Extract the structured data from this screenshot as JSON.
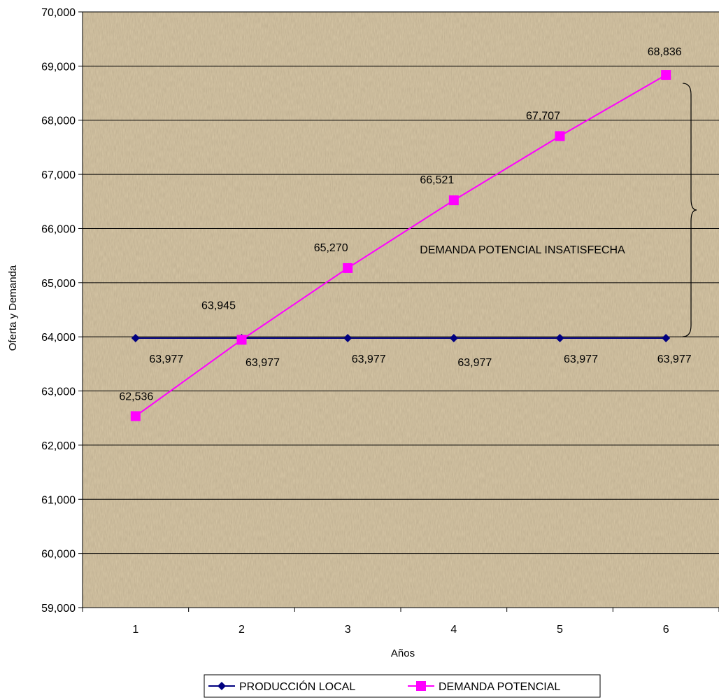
{
  "chart_data": {
    "type": "line",
    "x": [
      1,
      2,
      3,
      4,
      5,
      6
    ],
    "xlabel": "Años",
    "ylabel": "Oferta y Demanda",
    "ylim": [
      59000,
      70000
    ],
    "yticks": [
      59000,
      60000,
      61000,
      62000,
      63000,
      64000,
      65000,
      66000,
      67000,
      68000,
      69000,
      70000
    ],
    "ytick_labels": [
      "59,000",
      "60,000",
      "61,000",
      "62,000",
      "63,000",
      "64,000",
      "65,000",
      "66,000",
      "67,000",
      "68,000",
      "69,000",
      "70,000"
    ],
    "grid": "horizontal",
    "legend_position": "bottom",
    "series": [
      {
        "name": "PRODUCCIÓN LOCAL",
        "values": [
          63977,
          63977,
          63977,
          63977,
          63977,
          63977
        ],
        "labels": [
          "63,977",
          "63,977",
          "63,977",
          "63,977",
          "63,977",
          "63,977"
        ],
        "color": "#000080",
        "marker": "diamond"
      },
      {
        "name": "DEMANDA POTENCIAL",
        "values": [
          62536,
          63945,
          65270,
          66521,
          67707,
          68836
        ],
        "labels": [
          "62,536",
          "63,945",
          "65,270",
          "66,521",
          "67,707",
          "68,836"
        ],
        "color": "#FF00FF",
        "marker": "square"
      }
    ],
    "annotation": "DEMANDA POTENCIAL INSATISFECHA",
    "plot_background": "#d9c9a8"
  }
}
